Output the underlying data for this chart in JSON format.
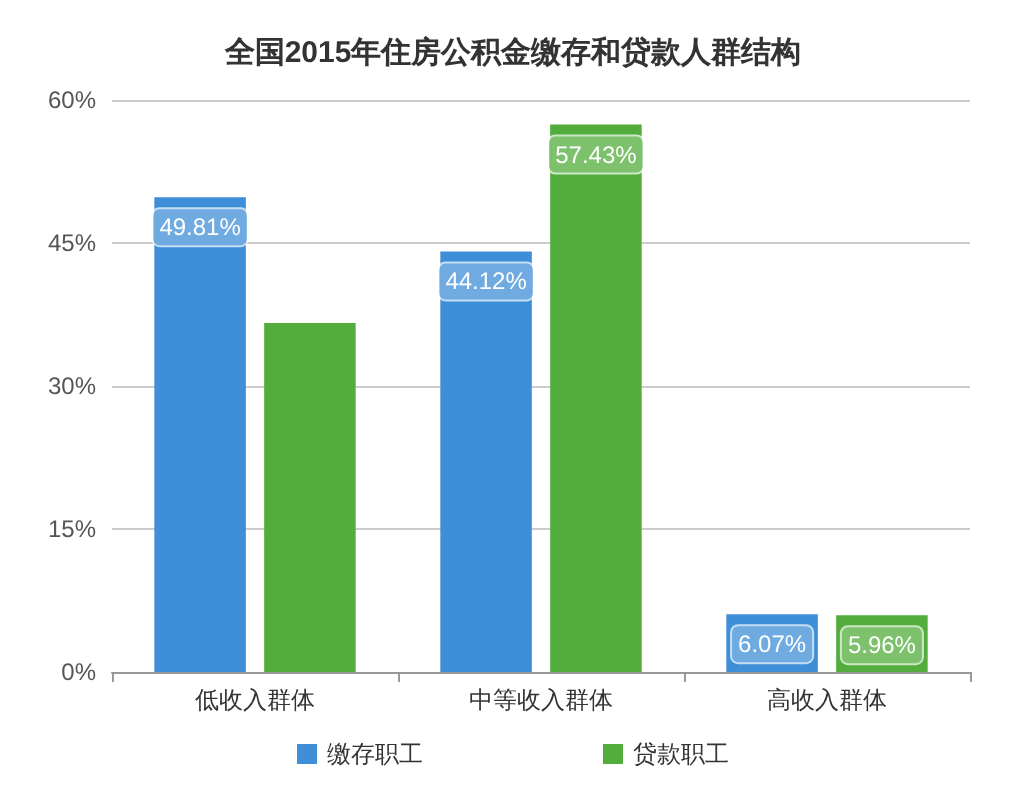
{
  "chart_data": {
    "type": "bar",
    "title": "全国2015年住房公积金缴存和贷款人群结构",
    "categories": [
      "低收入群体",
      "中等收入群体",
      "高收入群体"
    ],
    "series": [
      {
        "name": "缴存职工",
        "color": "#3f8fd8",
        "values": [
          49.81,
          44.12,
          6.07
        ],
        "value_labels": [
          "49.81%",
          "44.12%",
          "6.07%"
        ]
      },
      {
        "name": "贷款职工",
        "color": "#52ad3c",
        "values": [
          36.6,
          57.43,
          5.96
        ],
        "value_labels": [
          null,
          "57.43%",
          "5.96%"
        ]
      }
    ],
    "ylim": [
      0,
      60
    ],
    "yticks": [
      {
        "value": 0,
        "label": "0%"
      },
      {
        "value": 15,
        "label": "15%"
      },
      {
        "value": 30,
        "label": "30%"
      },
      {
        "value": 45,
        "label": "45%"
      },
      {
        "value": 60,
        "label": "60%"
      }
    ],
    "grid": "y",
    "legend": "bottom"
  }
}
